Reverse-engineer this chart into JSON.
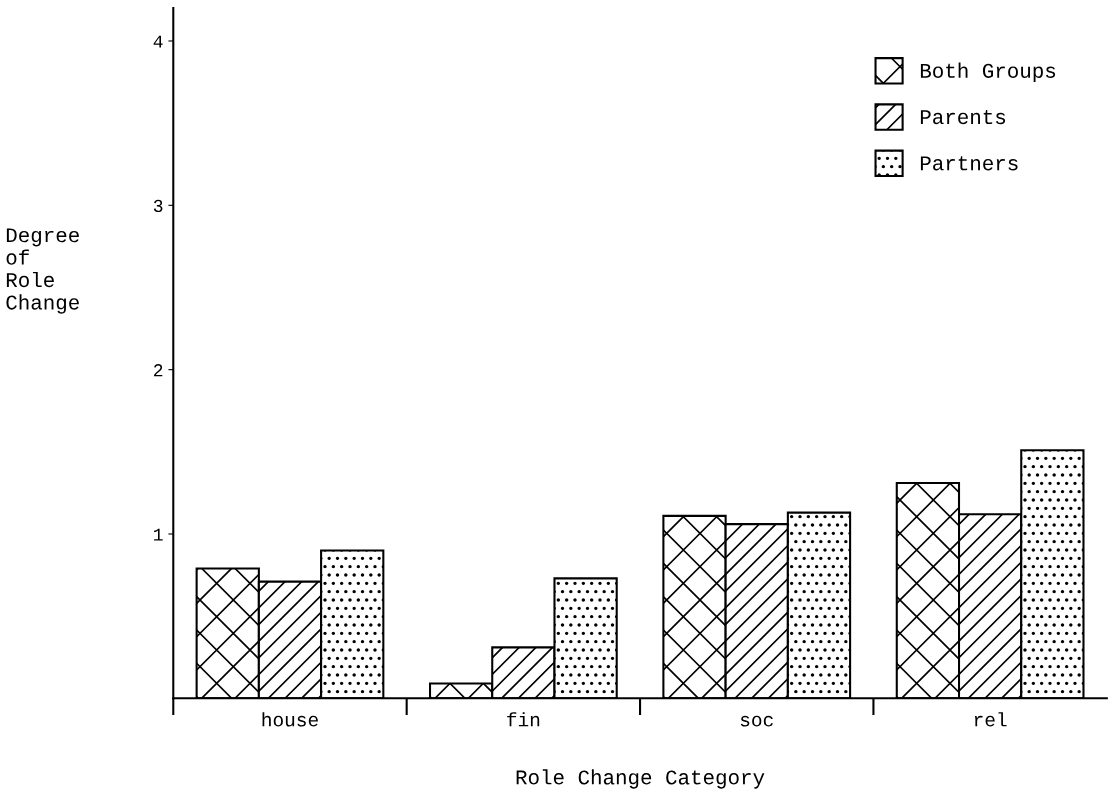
{
  "chart_data": {
    "type": "bar",
    "xlabel": "Role Change Category",
    "ylabel": "Degree\nof\nRole\nChange",
    "categories": [
      "house",
      "fin",
      "soc",
      "rel"
    ],
    "series": [
      {
        "name": "Both Groups",
        "color": "#000000",
        "values": [
          0.79,
          0.09,
          1.11,
          1.31
        ]
      },
      {
        "name": "Parents",
        "color": "#000000",
        "values": [
          0.71,
          0.31,
          1.06,
          1.12
        ]
      },
      {
        "name": "Partners",
        "color": "#000000",
        "values": [
          0.9,
          0.73,
          1.13,
          1.51
        ]
      }
    ],
    "ylim": [
      0,
      4.2
    ],
    "yticks": [
      1,
      2,
      3,
      4
    ],
    "grid": false,
    "legend": "top right"
  }
}
